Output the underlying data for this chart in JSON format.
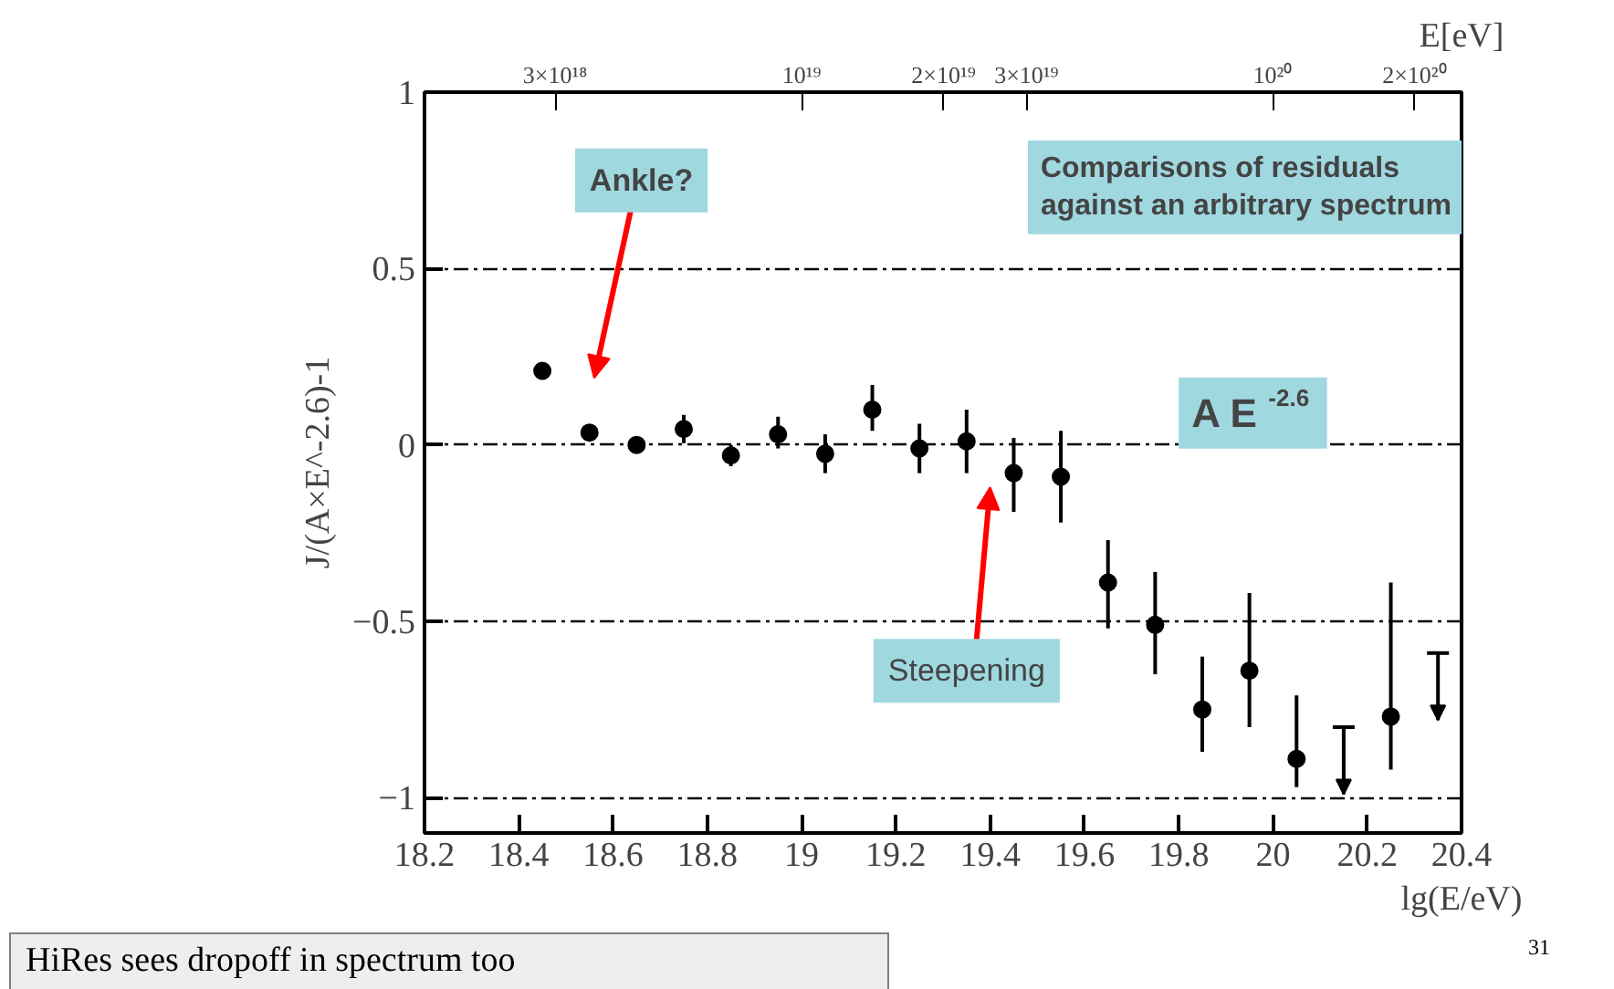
{
  "chart_data": {
    "type": "scatter",
    "xlabel": "lg(E/eV)",
    "ylabel": "J/(A×E^-2.6)-1",
    "x2label": "E[eV]",
    "xlim": [
      18.2,
      20.4
    ],
    "xticks": [
      18.2,
      18.4,
      18.6,
      18.8,
      19,
      19.2,
      19.4,
      19.6,
      19.8,
      20,
      20.2,
      20.4
    ],
    "x2lim": [
      1.585e+18,
      2.512e+20
    ],
    "log": "x2",
    "x2ticks": [
      {
        "value": 3e+18,
        "label": "3×10¹⁸"
      },
      {
        "value": 1e+19,
        "label": "10¹⁹"
      },
      {
        "value": 2e+19,
        "label": "2×10¹⁹"
      },
      {
        "value": 3e+19,
        "label": "3×10¹⁹"
      },
      {
        "value": 1e+20,
        "label": "10²⁰"
      },
      {
        "value": 2e+20,
        "label": "2×10²⁰"
      }
    ],
    "ylim": [
      -1.1,
      1
    ],
    "yticks": [
      -1,
      -0.5,
      0,
      0.5,
      1
    ],
    "grid": "y",
    "series": [
      {
        "color": "#000000",
        "marker": "circle",
        "x": [
          18.45,
          18.55,
          18.65,
          18.75,
          18.85,
          18.95,
          19.05,
          19.15,
          19.25,
          19.35,
          19.45,
          19.55,
          19.65,
          19.75,
          19.85,
          19.95,
          20.05,
          20.25
        ],
        "values": [
          0.21,
          0.035,
          0.0,
          0.045,
          -0.03,
          0.03,
          -0.025,
          0.1,
          -0.01,
          0.01,
          -0.08,
          -0.09,
          -0.39,
          -0.51,
          -0.75,
          -0.64,
          -0.89,
          -0.77
        ],
        "errors": [
          null,
          null,
          null,
          [
            0.005,
            0.085
          ],
          [
            -0.06,
            0.0
          ],
          [
            -0.01,
            0.08
          ],
          [
            -0.08,
            0.03
          ],
          [
            0.04,
            0.17
          ],
          [
            -0.08,
            0.06
          ],
          [
            -0.08,
            0.1
          ],
          [
            -0.19,
            0.02
          ],
          [
            -0.22,
            0.04
          ],
          [
            -0.52,
            -0.27
          ],
          [
            -0.65,
            -0.36
          ],
          [
            -0.87,
            -0.6
          ],
          [
            -0.8,
            -0.42
          ],
          [
            -0.97,
            -0.71
          ],
          [
            -0.92,
            -0.39
          ]
        ]
      },
      {
        "color": "#000000",
        "marker": "triangle",
        "x": [
          20.15,
          20.35
        ],
        "values": [
          -0.97,
          -0.76
        ],
        "errors": [
          [
            -0.99,
            -0.8
          ],
          [
            -0.78,
            -0.59
          ]
        ]
      }
    ],
    "annotations": [
      "Ankle?",
      "Steepening",
      "Comparisons of residuals\nagainst an arbitrary spectrum",
      "A E$^{-2.6}$",
      "HiRes sees dropoff in spectrum too",
      "31"
    ]
  }
}
